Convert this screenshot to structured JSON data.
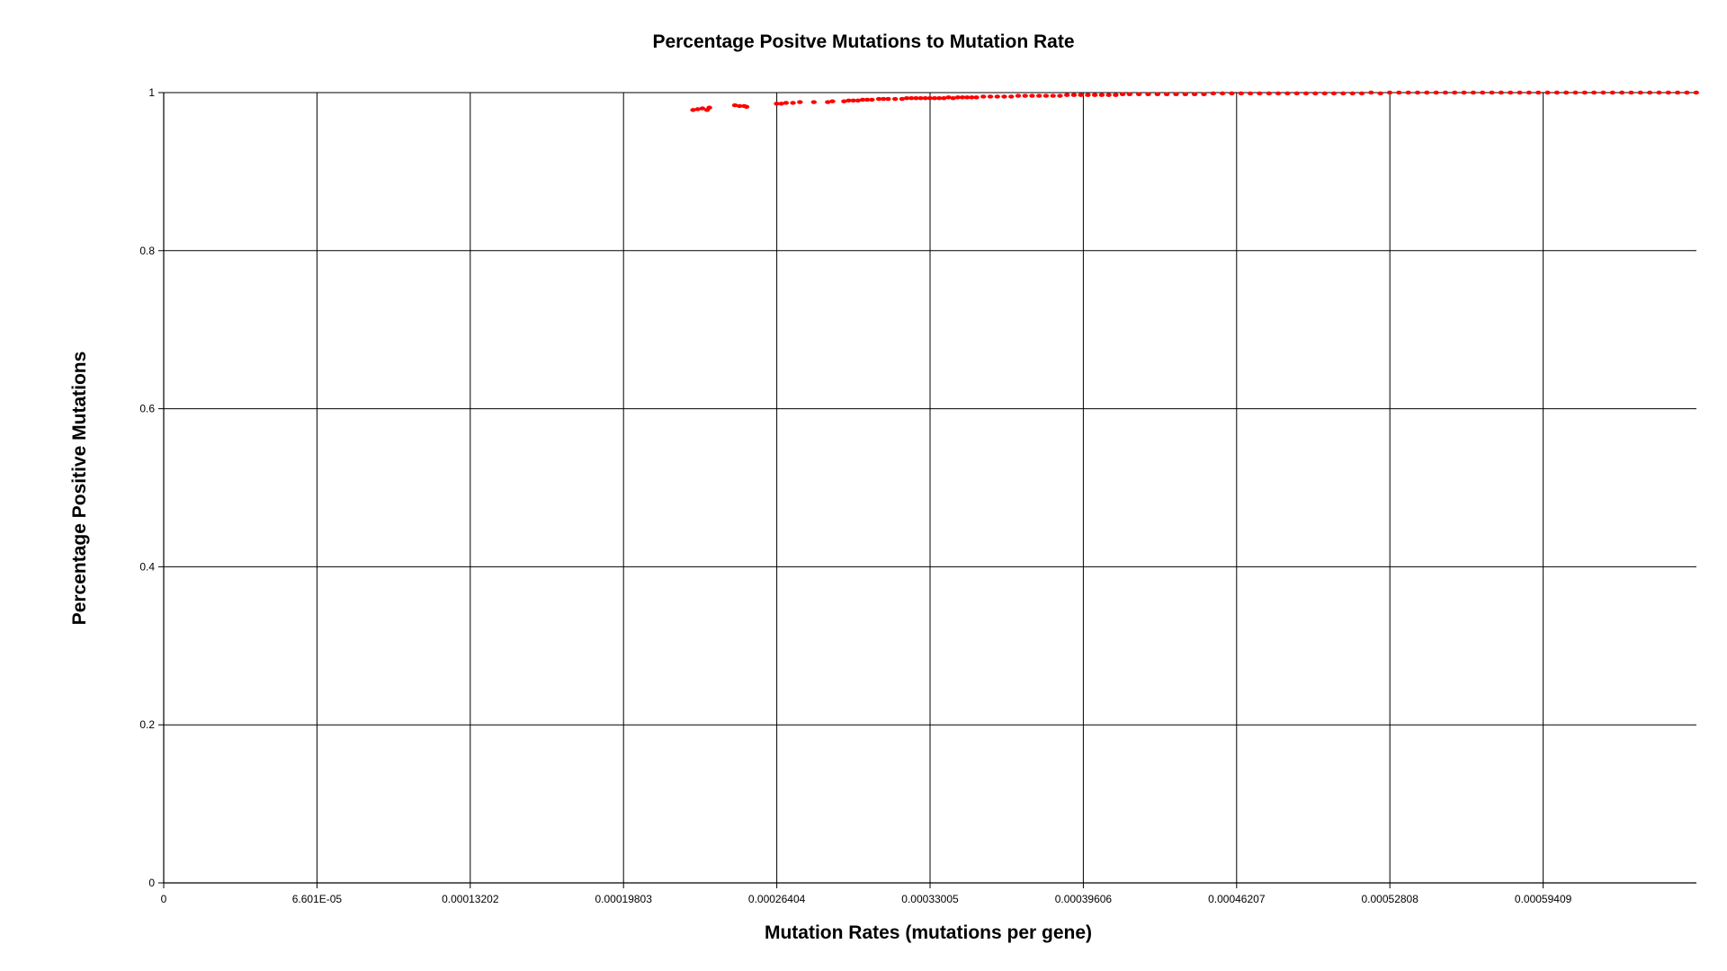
{
  "chart_data": {
    "type": "scatter",
    "title": "Percentage Positve Mutations to Mutation Rate",
    "xlabel": "Mutation Rates (mutations per gene)",
    "ylabel": "Percentage Positive Mutations",
    "xlim": [
      0,
      0.0006601
    ],
    "ylim": [
      0,
      1
    ],
    "x_ticks": [
      {
        "value": 0,
        "label": "0"
      },
      {
        "value": 6.601e-05,
        "label": "6.601E-05"
      },
      {
        "value": 0.00013202,
        "label": "0.00013202"
      },
      {
        "value": 0.00019803,
        "label": "0.00019803"
      },
      {
        "value": 0.00026404,
        "label": "0.00026404"
      },
      {
        "value": 0.00033005,
        "label": "0.00033005"
      },
      {
        "value": 0.00039606,
        "label": "0.00039606"
      },
      {
        "value": 0.00046207,
        "label": "0.00046207"
      },
      {
        "value": 0.00052808,
        "label": "0.00052808"
      },
      {
        "value": 0.00059409,
        "label": "0.00059409"
      }
    ],
    "y_ticks": [
      {
        "value": 0,
        "label": "0"
      },
      {
        "value": 0.2,
        "label": "0.2"
      },
      {
        "value": 0.4,
        "label": "0.4"
      },
      {
        "value": 0.6,
        "label": "0.6"
      },
      {
        "value": 0.8,
        "label": "0.8"
      },
      {
        "value": 1,
        "label": "1"
      }
    ],
    "grid": true,
    "marker_color": "#ff0000",
    "series": [
      {
        "points": [
          [
            0.000228,
            0.978
          ],
          [
            0.00023,
            0.979
          ],
          [
            0.000232,
            0.98
          ],
          [
            0.000234,
            0.978
          ],
          [
            0.000235,
            0.981
          ],
          [
            0.000246,
            0.984
          ],
          [
            0.000248,
            0.983
          ],
          [
            0.00025,
            0.983
          ],
          [
            0.000251,
            0.982
          ],
          [
            0.000264,
            0.986
          ],
          [
            0.000266,
            0.986
          ],
          [
            0.000268,
            0.987
          ],
          [
            0.000271,
            0.987
          ],
          [
            0.000274,
            0.988
          ],
          [
            0.00028,
            0.988
          ],
          [
            0.000286,
            0.988
          ],
          [
            0.000288,
            0.989
          ],
          [
            0.000293,
            0.989
          ],
          [
            0.000295,
            0.99
          ],
          [
            0.000297,
            0.99
          ],
          [
            0.000299,
            0.99
          ],
          [
            0.000301,
            0.991
          ],
          [
            0.000303,
            0.991
          ],
          [
            0.000305,
            0.991
          ],
          [
            0.000308,
            0.992
          ],
          [
            0.00031,
            0.992
          ],
          [
            0.000312,
            0.992
          ],
          [
            0.000315,
            0.992
          ],
          [
            0.000318,
            0.992
          ],
          [
            0.00032,
            0.993
          ],
          [
            0.000322,
            0.993
          ],
          [
            0.000324,
            0.993
          ],
          [
            0.000326,
            0.993
          ],
          [
            0.000328,
            0.993
          ],
          [
            0.00033,
            0.993
          ],
          [
            0.000332,
            0.993
          ],
          [
            0.000334,
            0.993
          ],
          [
            0.000336,
            0.993
          ],
          [
            0.000338,
            0.994
          ],
          [
            0.00034,
            0.993
          ],
          [
            0.000342,
            0.994
          ],
          [
            0.000344,
            0.994
          ],
          [
            0.000346,
            0.994
          ],
          [
            0.000348,
            0.994
          ],
          [
            0.00035,
            0.994
          ],
          [
            0.000353,
            0.995
          ],
          [
            0.000356,
            0.995
          ],
          [
            0.000359,
            0.995
          ],
          [
            0.000362,
            0.995
          ],
          [
            0.000365,
            0.995
          ],
          [
            0.000368,
            0.996
          ],
          [
            0.000371,
            0.996
          ],
          [
            0.000374,
            0.996
          ],
          [
            0.000377,
            0.996
          ],
          [
            0.00038,
            0.996
          ],
          [
            0.000383,
            0.996
          ],
          [
            0.000386,
            0.996
          ],
          [
            0.000389,
            0.997
          ],
          [
            0.000392,
            0.997
          ],
          [
            0.000395,
            0.997
          ],
          [
            0.000398,
            0.997
          ],
          [
            0.000401,
            0.997
          ],
          [
            0.000404,
            0.997
          ],
          [
            0.000407,
            0.997
          ],
          [
            0.00041,
            0.997
          ],
          [
            0.000413,
            0.998
          ],
          [
            0.000416,
            0.998
          ],
          [
            0.00042,
            0.998
          ],
          [
            0.000424,
            0.998
          ],
          [
            0.000428,
            0.998
          ],
          [
            0.000432,
            0.998
          ],
          [
            0.000436,
            0.998
          ],
          [
            0.00044,
            0.998
          ],
          [
            0.000444,
            0.998
          ],
          [
            0.000448,
            0.998
          ],
          [
            0.000452,
            0.999
          ],
          [
            0.000456,
            0.999
          ],
          [
            0.00046,
            0.999
          ],
          [
            0.000464,
            0.999
          ],
          [
            0.000468,
            0.999
          ],
          [
            0.000472,
            0.999
          ],
          [
            0.000476,
            0.999
          ],
          [
            0.00048,
            0.999
          ],
          [
            0.000484,
            0.999
          ],
          [
            0.000488,
            0.999
          ],
          [
            0.000492,
            0.999
          ],
          [
            0.000496,
            0.999
          ],
          [
            0.0005,
            0.999
          ],
          [
            0.000504,
            0.999
          ],
          [
            0.000508,
            0.999
          ],
          [
            0.000512,
            0.999
          ],
          [
            0.000516,
            0.999
          ],
          [
            0.00052,
            1.0
          ],
          [
            0.000524,
            0.999
          ],
          [
            0.000528,
            1.0
          ],
          [
            0.000532,
            1.0
          ],
          [
            0.000536,
            1.0
          ],
          [
            0.00054,
            1.0
          ],
          [
            0.000544,
            1.0
          ],
          [
            0.000548,
            1.0
          ],
          [
            0.000552,
            1.0
          ],
          [
            0.000556,
            1.0
          ],
          [
            0.00056,
            1.0
          ],
          [
            0.000564,
            1.0
          ],
          [
            0.000568,
            1.0
          ],
          [
            0.000572,
            1.0
          ],
          [
            0.000576,
            1.0
          ],
          [
            0.00058,
            1.0
          ],
          [
            0.000584,
            1.0
          ],
          [
            0.000588,
            1.0
          ],
          [
            0.000592,
            1.0
          ],
          [
            0.000596,
            1.0
          ],
          [
            0.0006,
            1.0
          ],
          [
            0.000604,
            1.0
          ],
          [
            0.000608,
            1.0
          ],
          [
            0.000612,
            1.0
          ],
          [
            0.000616,
            1.0
          ],
          [
            0.00062,
            1.0
          ],
          [
            0.000624,
            1.0
          ],
          [
            0.000628,
            1.0
          ],
          [
            0.000632,
            1.0
          ],
          [
            0.000636,
            1.0
          ],
          [
            0.00064,
            1.0
          ],
          [
            0.000644,
            1.0
          ],
          [
            0.000648,
            1.0
          ],
          [
            0.000652,
            1.0
          ],
          [
            0.000656,
            1.0
          ],
          [
            0.00066,
            1.0
          ]
        ]
      }
    ]
  }
}
